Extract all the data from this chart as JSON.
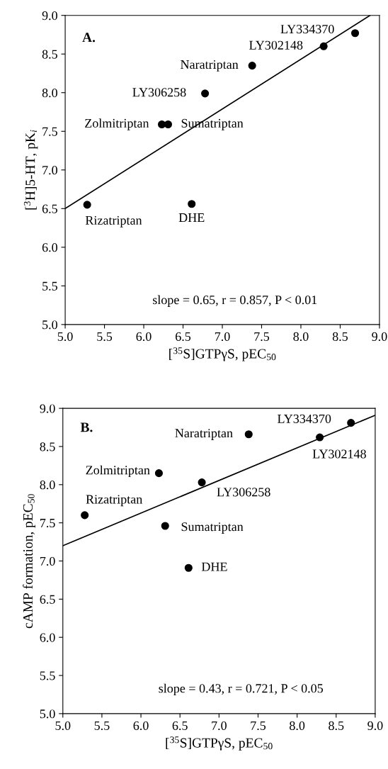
{
  "chart_data": [
    {
      "type": "scatter",
      "title": "A.",
      "xlabel": "[$^{35}$S]GTPγS, pEC$_{50}$",
      "ylabel": "[$^{3}$H]5-HT, pK$_{i}$",
      "xlim": [
        5.0,
        9.0
      ],
      "ylim": [
        5.0,
        9.0
      ],
      "xticks": [
        {
          "value": 5.0,
          "label": "5.0"
        },
        {
          "value": 5.5,
          "label": "5.5"
        },
        {
          "value": 6.0,
          "label": "6.0"
        },
        {
          "value": 6.5,
          "label": "6.5"
        },
        {
          "value": 7.0,
          "label": "7.0"
        },
        {
          "value": 7.5,
          "label": "7.5"
        },
        {
          "value": 8.0,
          "label": "8.0"
        },
        {
          "value": 8.5,
          "label": "8.5"
        },
        {
          "value": 9.0,
          "label": "9.0"
        }
      ],
      "yticks": [
        {
          "value": 5.0,
          "label": "5.0"
        },
        {
          "value": 5.5,
          "label": "5.5"
        },
        {
          "value": 6.0,
          "label": "6.0"
        },
        {
          "value": 6.5,
          "label": "6.5"
        },
        {
          "value": 7.0,
          "label": "7.0"
        },
        {
          "value": 7.5,
          "label": "7.5"
        },
        {
          "value": 8.0,
          "label": "8.0"
        },
        {
          "value": 8.5,
          "label": "8.5"
        },
        {
          "value": 9.0,
          "label": "9.0"
        }
      ],
      "grid": false,
      "legend": false,
      "series": [
        {
          "color": "#000000",
          "marker": "circle",
          "x": [
            5.28,
            6.23,
            6.31,
            6.61,
            6.78,
            7.38,
            8.29,
            8.69
          ],
          "values": [
            6.55,
            7.59,
            7.59,
            6.56,
            7.99,
            8.35,
            8.6,
            8.77
          ]
        },
        {
          "type": "line",
          "color": "#000000",
          "x": [
            5.0,
            8.88
          ],
          "values": [
            6.5,
            9.0
          ]
        }
      ],
      "annotations": [
        {
          "text": "Rizatriptan",
          "x": 5.28,
          "y": 6.55
        },
        {
          "text": "Zolmitriptan",
          "x": 6.23,
          "y": 7.59
        },
        {
          "text": "Sumatriptan",
          "x": 6.31,
          "y": 7.59
        },
        {
          "text": "DHE",
          "x": 6.61,
          "y": 6.56
        },
        {
          "text": "LY306258",
          "x": 6.78,
          "y": 7.99
        },
        {
          "text": "Naratriptan",
          "x": 7.38,
          "y": 8.35
        },
        {
          "text": "LY302148",
          "x": 8.29,
          "y": 8.6
        },
        {
          "text": "LY334370",
          "x": 8.69,
          "y": 8.77
        },
        "slope = 0.65, r = 0.857, P < 0.01"
      ]
    },
    {
      "type": "scatter",
      "title": "B.",
      "xlabel": "[$^{35}$S]GTPγS, pEC$_{50}$",
      "ylabel": "cAMP formation, pEC$_{50}$",
      "xlim": [
        5.0,
        9.0
      ],
      "ylim": [
        5.0,
        9.0
      ],
      "xticks": [
        {
          "value": 5.0,
          "label": "5.0"
        },
        {
          "value": 5.5,
          "label": "5.5"
        },
        {
          "value": 6.0,
          "label": "6.0"
        },
        {
          "value": 6.5,
          "label": "6.5"
        },
        {
          "value": 7.0,
          "label": "7.0"
        },
        {
          "value": 7.5,
          "label": "7.5"
        },
        {
          "value": 8.0,
          "label": "8.0"
        },
        {
          "value": 8.5,
          "label": "8.5"
        },
        {
          "value": 9.0,
          "label": "9.0"
        }
      ],
      "yticks": [
        {
          "value": 5.0,
          "label": "5.0"
        },
        {
          "value": 5.5,
          "label": "5.5"
        },
        {
          "value": 6.0,
          "label": "6.0"
        },
        {
          "value": 6.5,
          "label": "6.5"
        },
        {
          "value": 7.0,
          "label": "7.0"
        },
        {
          "value": 7.5,
          "label": "7.5"
        },
        {
          "value": 8.0,
          "label": "8.0"
        },
        {
          "value": 8.5,
          "label": "8.5"
        },
        {
          "value": 9.0,
          "label": "9.0"
        }
      ],
      "grid": false,
      "legend": false,
      "series": [
        {
          "color": "#000000",
          "marker": "circle",
          "x": [
            5.28,
            6.23,
            6.31,
            6.61,
            6.78,
            7.38,
            8.29,
            8.69
          ],
          "values": [
            7.6,
            8.15,
            7.46,
            6.91,
            8.03,
            8.66,
            8.62,
            8.81
          ]
        },
        {
          "type": "line",
          "color": "#000000",
          "x": [
            5.0,
            9.0
          ],
          "values": [
            7.2,
            8.91
          ]
        }
      ],
      "annotations": [
        {
          "text": "Rizatriptan",
          "x": 5.28,
          "y": 7.6
        },
        {
          "text": "Zolmitriptan",
          "x": 6.23,
          "y": 8.15
        },
        {
          "text": "Sumatriptan",
          "x": 6.31,
          "y": 7.46
        },
        {
          "text": "DHE",
          "x": 6.61,
          "y": 6.91
        },
        {
          "text": "LY306258",
          "x": 6.78,
          "y": 8.03
        },
        {
          "text": "Naratriptan",
          "x": 7.38,
          "y": 8.66
        },
        {
          "text": "LY302148",
          "x": 8.29,
          "y": 8.62
        },
        {
          "text": "LY334370",
          "x": 8.69,
          "y": 8.81
        },
        "slope = 0.43, r = 0.721, P < 0.05"
      ]
    }
  ]
}
